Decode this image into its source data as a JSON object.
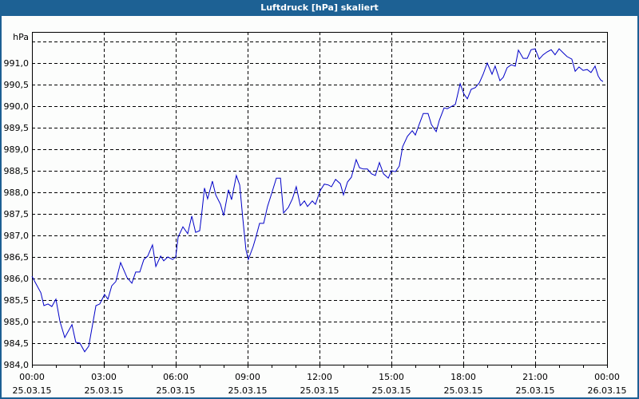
{
  "window": {
    "title": "Luftdruck [hPa] skaliert"
  },
  "colors": {
    "titlebar": "#1d6194",
    "line": "#0000c8",
    "grid": "#000000",
    "background": "#fcfdfc"
  },
  "chart_data": {
    "type": "line",
    "title": "Luftdruck [hPa] skaliert",
    "xlabel": "",
    "ylabel": "hPa",
    "ylim": [
      984.0,
      991.5
    ],
    "xlim_hours": [
      0,
      24
    ],
    "grid": true,
    "y_ticks": [
      "991,0",
      "990,5",
      "990,0",
      "989,5",
      "989,0",
      "988,5",
      "988,0",
      "987,5",
      "987,0",
      "986,5",
      "986,0",
      "985,5",
      "985,0",
      "984,5",
      "984,0"
    ],
    "x_ticks": [
      {
        "time": "00:00",
        "date": "25.03.15"
      },
      {
        "time": "03:00",
        "date": "25.03.15"
      },
      {
        "time": "06:00",
        "date": "25.03.15"
      },
      {
        "time": "09:00",
        "date": "25.03.15"
      },
      {
        "time": "12:00",
        "date": "25.03.15"
      },
      {
        "time": "15:00",
        "date": "25.03.15"
      },
      {
        "time": "18:00",
        "date": "25.03.15"
      },
      {
        "time": "21:00",
        "date": "25.03.15"
      },
      {
        "time": "00:00",
        "date": "26.03.15"
      }
    ],
    "series": [
      {
        "name": "Luftdruck",
        "unit": "hPa",
        "points": [
          [
            0.0,
            986.05
          ],
          [
            0.37,
            985.67
          ],
          [
            0.5,
            985.37
          ],
          [
            0.67,
            985.41
          ],
          [
            0.83,
            985.35
          ],
          [
            1.0,
            985.52
          ],
          [
            1.17,
            985.0
          ],
          [
            1.37,
            984.63
          ],
          [
            1.67,
            984.93
          ],
          [
            1.83,
            984.52
          ],
          [
            2.0,
            984.5
          ],
          [
            2.2,
            984.3
          ],
          [
            2.37,
            984.43
          ],
          [
            2.67,
            985.37
          ],
          [
            2.83,
            985.41
          ],
          [
            3.03,
            985.63
          ],
          [
            3.17,
            985.52
          ],
          [
            3.33,
            985.83
          ],
          [
            3.5,
            985.93
          ],
          [
            3.7,
            986.37
          ],
          [
            3.97,
            986.02
          ],
          [
            4.17,
            985.89
          ],
          [
            4.33,
            986.15
          ],
          [
            4.5,
            986.15
          ],
          [
            4.67,
            986.44
          ],
          [
            4.83,
            986.52
          ],
          [
            5.03,
            986.78
          ],
          [
            5.17,
            986.28
          ],
          [
            5.37,
            986.52
          ],
          [
            5.5,
            986.41
          ],
          [
            5.67,
            986.5
          ],
          [
            5.87,
            986.44
          ],
          [
            6.0,
            986.5
          ],
          [
            6.1,
            986.96
          ],
          [
            6.3,
            987.2
          ],
          [
            6.5,
            987.04
          ],
          [
            6.67,
            987.45
          ],
          [
            6.83,
            987.07
          ],
          [
            7.0,
            987.11
          ],
          [
            7.07,
            987.43
          ],
          [
            7.2,
            988.1
          ],
          [
            7.33,
            987.85
          ],
          [
            7.53,
            988.26
          ],
          [
            7.67,
            987.94
          ],
          [
            7.87,
            987.72
          ],
          [
            8.0,
            987.46
          ],
          [
            8.2,
            988.06
          ],
          [
            8.33,
            987.83
          ],
          [
            8.53,
            988.39
          ],
          [
            8.67,
            988.17
          ],
          [
            8.8,
            987.39
          ],
          [
            8.93,
            986.67
          ],
          [
            9.03,
            986.44
          ],
          [
            9.23,
            986.74
          ],
          [
            9.33,
            986.93
          ],
          [
            9.5,
            987.28
          ],
          [
            9.67,
            987.28
          ],
          [
            9.83,
            987.67
          ],
          [
            10.03,
            988.02
          ],
          [
            10.2,
            988.33
          ],
          [
            10.37,
            988.33
          ],
          [
            10.5,
            987.52
          ],
          [
            10.7,
            987.65
          ],
          [
            10.87,
            987.85
          ],
          [
            11.03,
            988.13
          ],
          [
            11.2,
            987.69
          ],
          [
            11.37,
            987.8
          ],
          [
            11.5,
            987.67
          ],
          [
            11.7,
            987.8
          ],
          [
            11.83,
            987.72
          ],
          [
            12.03,
            988.04
          ],
          [
            12.2,
            988.19
          ],
          [
            12.37,
            988.17
          ],
          [
            12.5,
            988.13
          ],
          [
            12.67,
            988.3
          ],
          [
            12.87,
            988.2
          ],
          [
            13.0,
            987.94
          ],
          [
            13.17,
            988.24
          ],
          [
            13.33,
            988.35
          ],
          [
            13.53,
            988.76
          ],
          [
            13.67,
            988.57
          ],
          [
            13.83,
            988.54
          ],
          [
            14.0,
            988.54
          ],
          [
            14.17,
            988.43
          ],
          [
            14.33,
            988.39
          ],
          [
            14.5,
            988.69
          ],
          [
            14.67,
            988.43
          ],
          [
            14.87,
            988.33
          ],
          [
            15.0,
            988.5
          ],
          [
            15.17,
            988.48
          ],
          [
            15.33,
            988.61
          ],
          [
            15.47,
            989.06
          ],
          [
            15.67,
            989.3
          ],
          [
            15.87,
            989.43
          ],
          [
            16.0,
            989.33
          ],
          [
            16.17,
            989.59
          ],
          [
            16.33,
            989.83
          ],
          [
            16.53,
            989.83
          ],
          [
            16.67,
            989.57
          ],
          [
            16.87,
            989.41
          ],
          [
            17.0,
            989.67
          ],
          [
            17.2,
            989.96
          ],
          [
            17.33,
            989.94
          ],
          [
            17.67,
            990.04
          ],
          [
            17.87,
            990.52
          ],
          [
            18.03,
            990.28
          ],
          [
            18.17,
            990.17
          ],
          [
            18.33,
            990.39
          ],
          [
            18.5,
            990.43
          ],
          [
            18.67,
            990.54
          ],
          [
            18.83,
            990.74
          ],
          [
            19.0,
            991.0
          ],
          [
            19.2,
            990.74
          ],
          [
            19.33,
            990.93
          ],
          [
            19.53,
            990.59
          ],
          [
            19.67,
            990.67
          ],
          [
            19.83,
            990.89
          ],
          [
            20.0,
            990.96
          ],
          [
            20.17,
            990.93
          ],
          [
            20.3,
            991.3
          ],
          [
            20.5,
            991.11
          ],
          [
            20.67,
            991.11
          ],
          [
            20.83,
            991.31
          ],
          [
            21.0,
            991.33
          ],
          [
            21.17,
            991.09
          ],
          [
            21.33,
            991.19
          ],
          [
            21.5,
            991.26
          ],
          [
            21.67,
            991.31
          ],
          [
            21.83,
            991.19
          ],
          [
            22.0,
            991.33
          ],
          [
            22.2,
            991.22
          ],
          [
            22.33,
            991.15
          ],
          [
            22.53,
            991.09
          ],
          [
            22.67,
            990.81
          ],
          [
            22.83,
            990.91
          ],
          [
            23.0,
            990.83
          ],
          [
            23.17,
            990.85
          ],
          [
            23.33,
            990.78
          ],
          [
            23.5,
            990.93
          ],
          [
            23.63,
            990.7
          ],
          [
            23.73,
            990.61
          ],
          [
            23.83,
            990.57
          ]
        ]
      }
    ]
  }
}
